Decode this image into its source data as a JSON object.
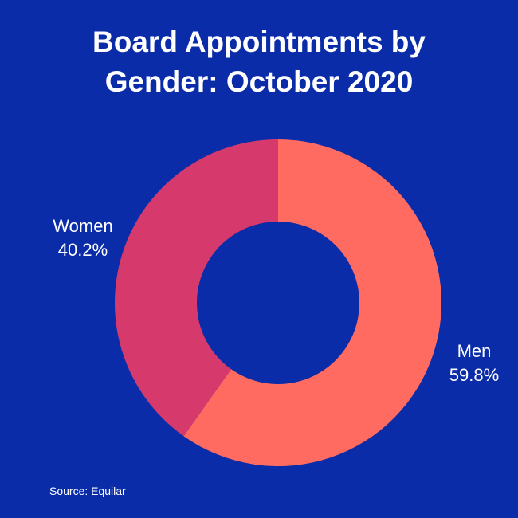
{
  "chart_data": {
    "type": "pie",
    "donut": true,
    "title_line1": "Board Appointments by",
    "title_line2": "Gender: October 2020",
    "slices": [
      {
        "name": "Women",
        "value": 40.2,
        "label": "40.2%",
        "color": "#d63a6c"
      },
      {
        "name": "Men",
        "value": 59.8,
        "label": "59.8%",
        "color": "#ff6b61"
      }
    ],
    "source": "Source: Equilar"
  },
  "colors": {
    "background": "#0a2ca8"
  }
}
